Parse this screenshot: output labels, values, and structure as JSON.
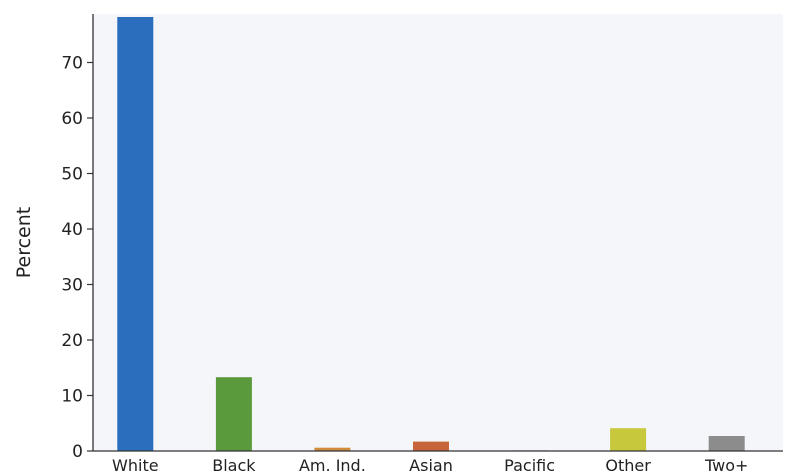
{
  "chart_data": {
    "type": "bar",
    "title": "",
    "xlabel": "",
    "ylabel": "Percent",
    "categories": [
      "White",
      "Black",
      "Am. Ind.",
      "Asian",
      "Pacific",
      "Other",
      "Two+"
    ],
    "values": [
      78.2,
      13.3,
      0.6,
      1.7,
      0.1,
      4.1,
      2.7
    ],
    "colors": [
      "#2a6ebd",
      "#5a9a3c",
      "#d08c3c",
      "#c8643a",
      "#8a5fa0",
      "#c8c83c",
      "#8c8c8c"
    ],
    "yticks": [
      0,
      10,
      20,
      30,
      40,
      50,
      60,
      70
    ],
    "ylim": [
      0,
      78.2
    ],
    "grid": false,
    "background": "#f4f6fa"
  }
}
